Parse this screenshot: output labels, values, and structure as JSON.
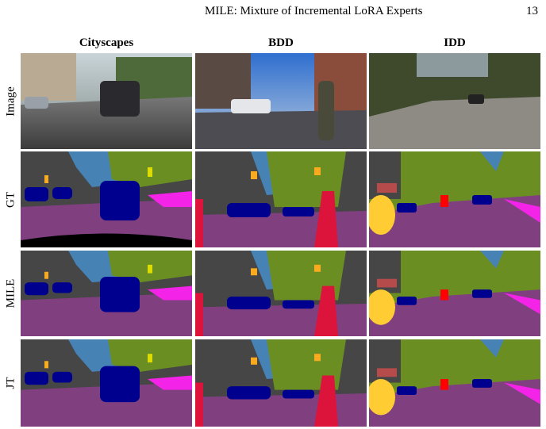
{
  "header": {
    "title": "MILE: Mixture of Incremental LoRA Experts",
    "page_number": "13"
  },
  "figure": {
    "columns": [
      "Cityscapes",
      "BDD",
      "IDD"
    ],
    "rows": [
      "Image",
      "GT",
      "MILE",
      "JT"
    ]
  }
}
